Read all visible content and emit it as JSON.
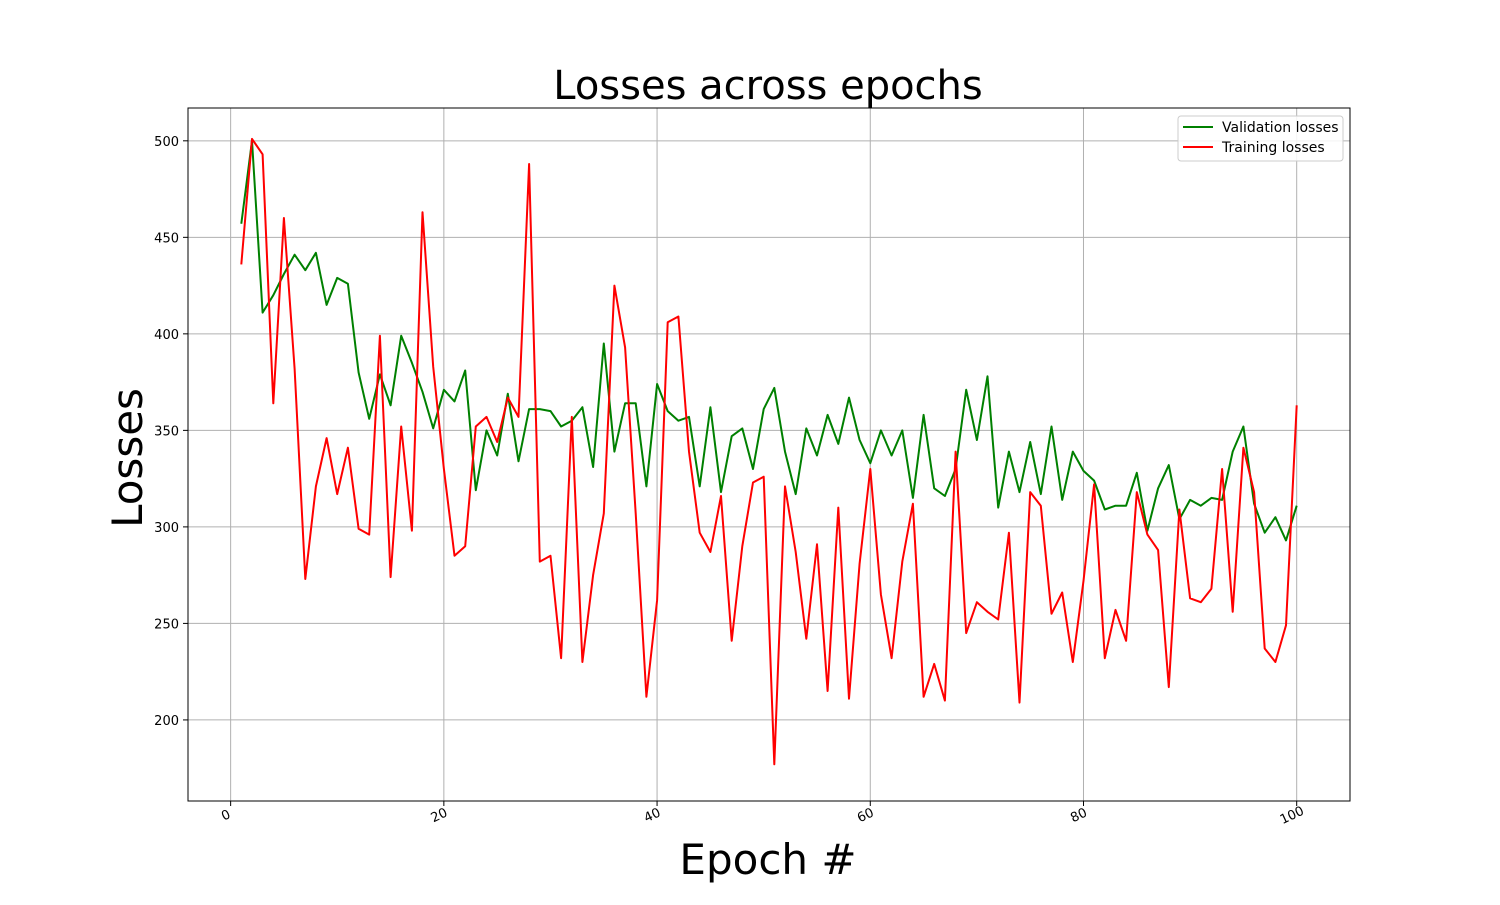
{
  "chart_data": {
    "type": "line",
    "title": "Losses across epochs",
    "xlabel": "Epoch #",
    "ylabel": "Losses",
    "xlim": [
      -4,
      105
    ],
    "ylim": [
      158,
      517
    ],
    "xticks": [
      0,
      20,
      40,
      60,
      80,
      100
    ],
    "yticks": [
      200,
      250,
      300,
      350,
      400,
      450,
      500
    ],
    "grid": true,
    "legend_position": "top-right",
    "x": [
      1,
      2,
      3,
      4,
      5,
      6,
      7,
      8,
      9,
      10,
      11,
      12,
      13,
      14,
      15,
      16,
      17,
      18,
      19,
      20,
      21,
      22,
      23,
      24,
      25,
      26,
      27,
      28,
      29,
      30,
      31,
      32,
      33,
      34,
      35,
      36,
      37,
      38,
      39,
      40,
      41,
      42,
      43,
      44,
      45,
      46,
      47,
      48,
      49,
      50,
      51,
      52,
      53,
      54,
      55,
      56,
      57,
      58,
      59,
      60,
      61,
      62,
      63,
      64,
      65,
      66,
      67,
      68,
      69,
      70,
      71,
      72,
      73,
      74,
      75,
      76,
      77,
      78,
      79,
      80,
      81,
      82,
      83,
      84,
      85,
      86,
      87,
      88,
      89,
      90,
      91,
      92,
      93,
      94,
      95,
      96,
      97,
      98,
      99,
      100
    ],
    "series": [
      {
        "name": "Validation losses",
        "color": "#008000",
        "values": [
          457,
          500,
          411,
          420,
          431,
          441,
          433,
          442,
          415,
          429,
          426,
          380,
          356,
          379,
          363,
          399,
          385,
          370,
          351,
          371,
          365,
          381,
          319,
          350,
          337,
          369,
          334,
          361,
          361,
          360,
          352,
          355,
          362,
          331,
          395,
          339,
          364,
          364,
          321,
          374,
          360,
          355,
          357,
          321,
          362,
          318,
          347,
          351,
          330,
          361,
          372,
          339,
          317,
          351,
          337,
          358,
          343,
          367,
          345,
          333,
          350,
          337,
          350,
          315,
          358,
          320,
          316,
          330,
          371,
          345,
          378,
          310,
          339,
          318,
          344,
          317,
          352,
          314,
          339,
          329,
          324,
          309,
          311,
          311,
          328,
          298,
          320,
          332,
          304,
          314,
          311,
          315,
          314,
          339,
          352,
          312,
          297,
          305,
          293,
          311
        ]
      },
      {
        "name": "Training losses",
        "color": "#ff0000",
        "values": [
          436,
          501,
          493,
          364,
          460,
          382,
          273,
          321,
          346,
          317,
          341,
          299,
          296,
          399,
          274,
          352,
          298,
          463,
          383,
          330,
          285,
          290,
          352,
          357,
          344,
          367,
          357,
          488,
          282,
          285,
          232,
          357,
          230,
          275,
          307,
          425,
          393,
          307,
          212,
          262,
          406,
          409,
          339,
          297,
          287,
          316,
          241,
          290,
          323,
          326,
          177,
          321,
          287,
          242,
          291,
          215,
          310,
          211,
          281,
          330,
          265,
          232,
          282,
          312,
          212,
          229,
          210,
          339,
          245,
          261,
          256,
          252,
          297,
          209,
          318,
          311,
          255,
          266,
          230,
          272,
          322,
          232,
          257,
          241,
          318,
          296,
          288,
          217,
          309,
          263,
          261,
          268,
          330,
          256,
          341,
          318,
          237,
          230,
          249,
          363
        ]
      }
    ]
  }
}
